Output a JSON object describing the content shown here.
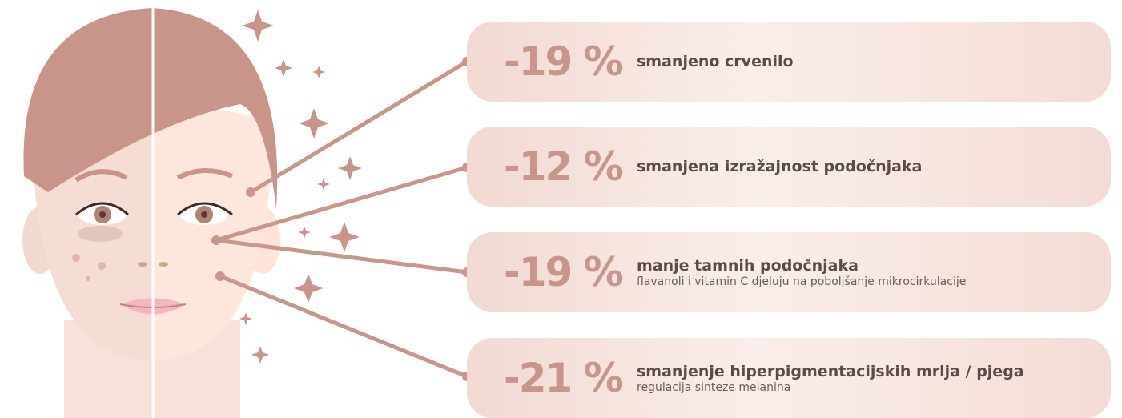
{
  "items": [
    {
      "stat": "-19 %",
      "title": "smanjeno crvenilo"
    },
    {
      "stat": "-12 %",
      "title": "smanjena izražajnost podočnjaka"
    },
    {
      "stat": "-19 %",
      "title": "manje tamnih podočnjaka",
      "subtitle": "flavanoli i vitamin C djeluju na poboljšanje mikrocirkulacije"
    },
    {
      "stat": "-21 %",
      "title": "smanjenje hiperpigmentacijskih mrlja / pjega",
      "subtitle": "regulacija sinteze melanina"
    }
  ]
}
